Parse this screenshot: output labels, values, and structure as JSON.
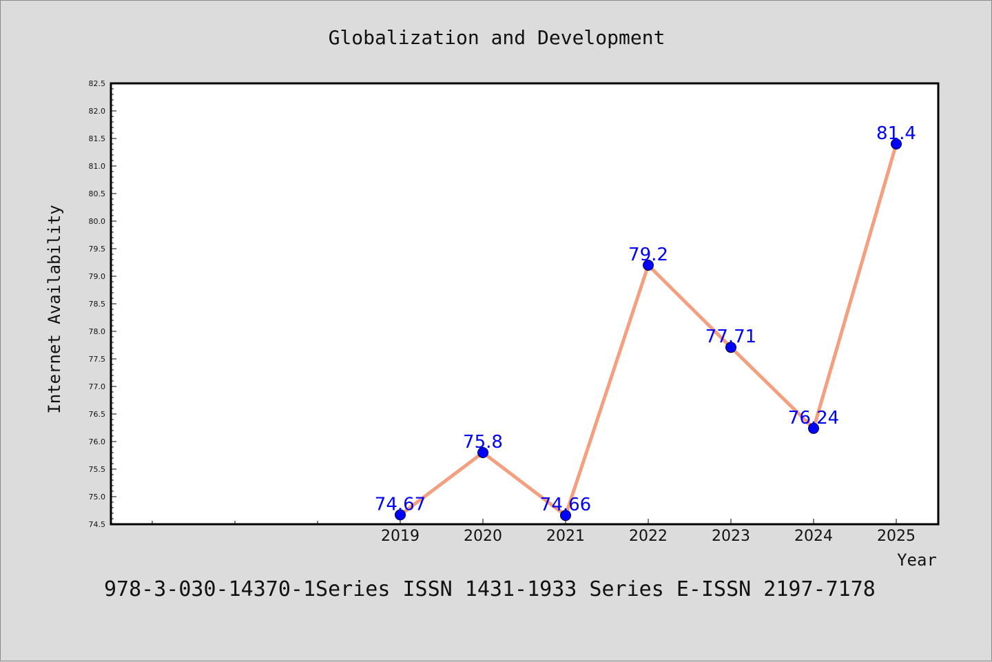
{
  "chart_data": {
    "type": "line",
    "title": "Globalization and Development",
    "xlabel": "Year",
    "ylabel": "Internet Availability",
    "categories": [
      "2019",
      "2020",
      "2021",
      "2022",
      "2023",
      "2024",
      "2025"
    ],
    "series": [
      {
        "values": [
          74.67,
          75.8,
          74.66,
          79.2,
          77.71,
          76.24,
          81.4
        ],
        "data_labels": [
          "74.67",
          "75.8",
          "74.66",
          "79.2",
          "77.71",
          "76.24",
          "81.4"
        ]
      }
    ],
    "ylim": [
      74.5,
      82.5
    ],
    "yticks": [
      "74.5",
      "75.0",
      "75.5",
      "76.0",
      "76.5",
      "77.0",
      "77.5",
      "78.0",
      "78.5",
      "79.0",
      "79.5",
      "80.0",
      "80.5",
      "81.0",
      "81.5",
      "82.0",
      "82.5"
    ],
    "grid": false,
    "line_color": "#f4a080",
    "marker_color": "#0000ff",
    "label_color": "#0000ff"
  },
  "footer": {
    "text": "978-3-030-14370-1Series ISSN 1431-1933 Series E-ISSN 2197-7178"
  }
}
